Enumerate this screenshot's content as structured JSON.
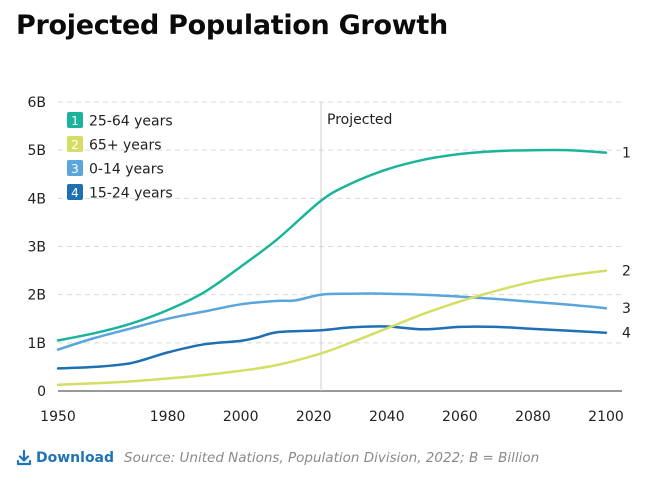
{
  "chart_data": {
    "type": "line",
    "title": "Projected Population Growth",
    "xlabel": "",
    "ylabel": "",
    "xlim": [
      1950,
      2100
    ],
    "ylim": [
      0,
      6
    ],
    "x_ticks": [
      "1950",
      "1980",
      "2000",
      "2020",
      "2040",
      "2060",
      "2080",
      "2100"
    ],
    "y_ticks": [
      "0",
      "1B",
      "2B",
      "3B",
      "4B",
      "5B",
      "6B"
    ],
    "projection_start": 2022,
    "projection_label": "Projected",
    "series": [
      {
        "id": "1",
        "name": "25-64 years",
        "color": "#1bb49a",
        "x": [
          1950,
          1960,
          1970,
          1980,
          1990,
          2000,
          2010,
          2022,
          2030,
          2040,
          2050,
          2060,
          2070,
          2080,
          2090,
          2100
        ],
        "values": [
          1.05,
          1.2,
          1.4,
          1.68,
          2.05,
          2.58,
          3.15,
          3.95,
          4.3,
          4.6,
          4.8,
          4.92,
          4.98,
          5.0,
          5.0,
          4.95
        ]
      },
      {
        "id": "2",
        "name": "65+ years",
        "color": "#d4de64",
        "x": [
          1950,
          1960,
          1970,
          1980,
          1990,
          2000,
          2010,
          2022,
          2030,
          2040,
          2050,
          2060,
          2070,
          2080,
          2090,
          2100
        ],
        "values": [
          0.13,
          0.16,
          0.2,
          0.26,
          0.33,
          0.42,
          0.54,
          0.78,
          1.0,
          1.3,
          1.6,
          1.86,
          2.08,
          2.27,
          2.4,
          2.5
        ]
      },
      {
        "id": "3",
        "name": "0-14 years",
        "color": "#5aa5dc",
        "x": [
          1950,
          1960,
          1970,
          1980,
          1990,
          2000,
          2010,
          2015,
          2022,
          2030,
          2040,
          2050,
          2060,
          2070,
          2080,
          2090,
          2100
        ],
        "values": [
          0.86,
          1.1,
          1.3,
          1.5,
          1.65,
          1.8,
          1.87,
          1.88,
          2.0,
          2.02,
          2.02,
          2.0,
          1.96,
          1.91,
          1.85,
          1.79,
          1.72
        ]
      },
      {
        "id": "4",
        "name": "15-24 years",
        "color": "#1f6fb5",
        "x": [
          1950,
          1960,
          1970,
          1980,
          1990,
          2000,
          2005,
          2010,
          2022,
          2030,
          2040,
          2050,
          2060,
          2070,
          2080,
          2090,
          2100
        ],
        "values": [
          0.47,
          0.5,
          0.58,
          0.8,
          0.97,
          1.04,
          1.12,
          1.22,
          1.26,
          1.32,
          1.34,
          1.28,
          1.33,
          1.33,
          1.29,
          1.25,
          1.21
        ]
      }
    ]
  },
  "footer": {
    "download_label": "Download",
    "source": "Source: United Nations, Population Division, 2022; B = Billion"
  }
}
